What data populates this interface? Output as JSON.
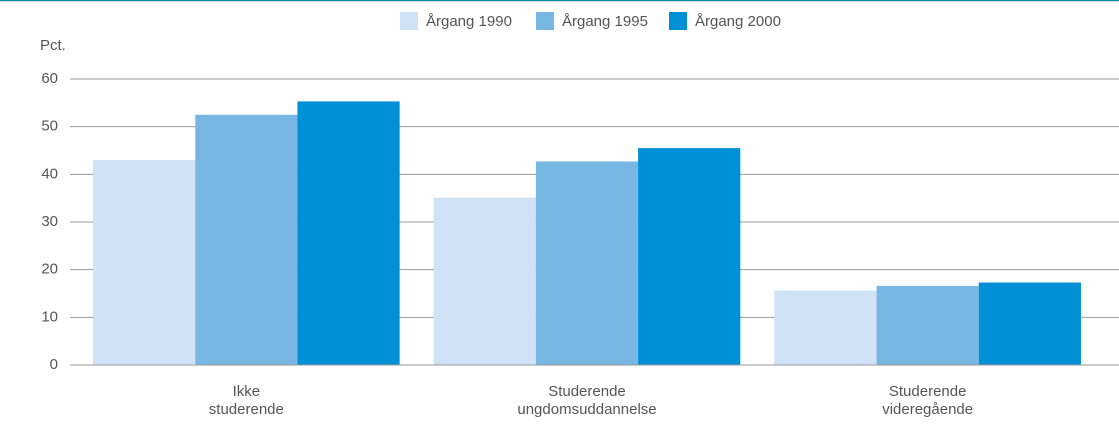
{
  "chart_data": {
    "type": "bar",
    "y_label": "Pct.",
    "categories": [
      [
        "Ikke",
        "studerende"
      ],
      [
        "Studerende",
        "ungdomsuddannelse"
      ],
      [
        "Studerende",
        "videregående"
      ]
    ],
    "series": [
      {
        "name": "Årgang 1990",
        "color": "#cfe2f6",
        "values": [
          43,
          35.1,
          15.6
        ]
      },
      {
        "name": "Årgang 1995",
        "color": "#78b6e4",
        "values": [
          52.5,
          42.7,
          16.6
        ]
      },
      {
        "name": "Årgang 2000",
        "color": "#0090d7",
        "values": [
          55.3,
          45.5,
          17.3
        ]
      }
    ],
    "ylim": [
      0,
      60
    ],
    "yticks": [
      0,
      10,
      20,
      30,
      40,
      50,
      60
    ],
    "grid": true,
    "legend": "top"
  }
}
